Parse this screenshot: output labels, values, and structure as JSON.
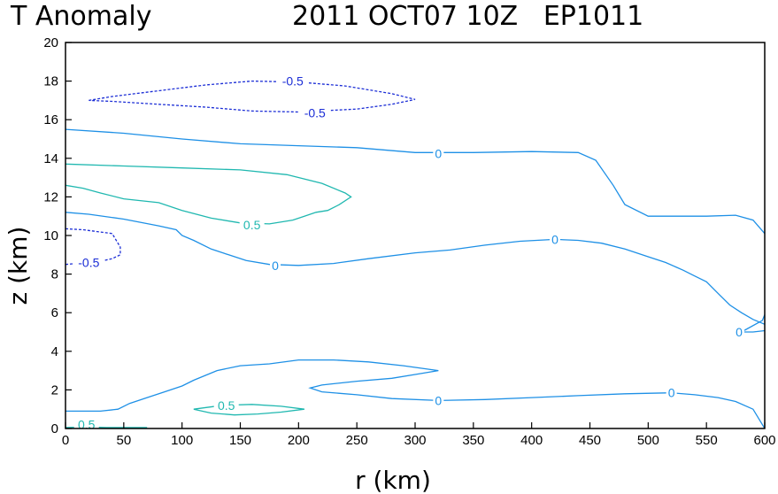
{
  "chart_data": {
    "type": "contour",
    "title_left": "T Anomaly",
    "title_right": "2011 OCT07 10Z   EP1011",
    "xlabel": "r (km)",
    "ylabel": "z (km)",
    "xlim": [
      0,
      600
    ],
    "ylim": [
      0,
      20
    ],
    "xticks": [
      0,
      50,
      100,
      150,
      200,
      250,
      300,
      350,
      400,
      450,
      500,
      550,
      600
    ],
    "yticks": [
      0,
      2,
      4,
      6,
      8,
      10,
      12,
      14,
      16,
      18,
      20
    ],
    "colors": {
      "zero": "#1e90e6",
      "positive": "#20b8b0",
      "negative": "#1c2ed6"
    },
    "contours": [
      {
        "level": 0,
        "style": "solid",
        "color": "zero",
        "points": [
          [
            0,
            15.5
          ],
          [
            50,
            15.3
          ],
          [
            100,
            15.0
          ],
          [
            150,
            14.75
          ],
          [
            200,
            14.65
          ],
          [
            250,
            14.55
          ],
          [
            300,
            14.3
          ],
          [
            350,
            14.3
          ],
          [
            400,
            14.35
          ],
          [
            440,
            14.3
          ],
          [
            455,
            13.9
          ],
          [
            470,
            12.6
          ],
          [
            480,
            11.6
          ],
          [
            500,
            11.0
          ],
          [
            525,
            11.0
          ],
          [
            550,
            11.0
          ],
          [
            575,
            11.05
          ],
          [
            590,
            10.8
          ],
          [
            600,
            10.1
          ]
        ],
        "labels": [
          {
            "text": "0",
            "x": 320,
            "y": 14.25
          }
        ]
      },
      {
        "level": 0,
        "style": "solid",
        "color": "zero",
        "points": [
          [
            0,
            11.2
          ],
          [
            20,
            11.1
          ],
          [
            50,
            10.85
          ],
          [
            80,
            10.5
          ],
          [
            95,
            10.3
          ],
          [
            100,
            10.0
          ],
          [
            110,
            9.75
          ],
          [
            125,
            9.3
          ],
          [
            140,
            9.0
          ],
          [
            155,
            8.7
          ],
          [
            175,
            8.5
          ],
          [
            200,
            8.45
          ],
          [
            230,
            8.55
          ],
          [
            260,
            8.8
          ],
          [
            300,
            9.1
          ],
          [
            330,
            9.25
          ],
          [
            360,
            9.5
          ],
          [
            390,
            9.7
          ],
          [
            420,
            9.8
          ],
          [
            440,
            9.75
          ],
          [
            460,
            9.6
          ],
          [
            480,
            9.3
          ],
          [
            500,
            8.9
          ],
          [
            515,
            8.6
          ],
          [
            530,
            8.2
          ],
          [
            540,
            7.9
          ],
          [
            550,
            7.6
          ],
          [
            560,
            7.0
          ],
          [
            570,
            6.4
          ],
          [
            580,
            6.0
          ],
          [
            590,
            5.65
          ],
          [
            600,
            5.4
          ],
          [
            605,
            5.1
          ],
          [
            590,
            5.0
          ],
          [
            580,
            5.0
          ],
          [
            598,
            5.6
          ],
          [
            600,
            5.9
          ]
        ],
        "labels": [
          {
            "text": "0",
            "x": 180,
            "y": 8.45
          },
          {
            "text": "0",
            "x": 420,
            "y": 9.8
          },
          {
            "text": "0",
            "x": 578,
            "y": 5.0
          }
        ]
      },
      {
        "level": 0,
        "style": "solid",
        "color": "zero",
        "points": [
          [
            0,
            0.9
          ],
          [
            30,
            0.9
          ],
          [
            45,
            1.0
          ],
          [
            55,
            1.3
          ],
          [
            70,
            1.6
          ],
          [
            85,
            1.9
          ],
          [
            100,
            2.2
          ],
          [
            110,
            2.5
          ],
          [
            130,
            3.0
          ],
          [
            150,
            3.25
          ],
          [
            175,
            3.35
          ],
          [
            200,
            3.55
          ],
          [
            230,
            3.55
          ],
          [
            260,
            3.45
          ],
          [
            290,
            3.25
          ],
          [
            320,
            3.0
          ],
          [
            300,
            2.8
          ],
          [
            280,
            2.6
          ],
          [
            250,
            2.45
          ],
          [
            220,
            2.25
          ],
          [
            210,
            2.1
          ],
          [
            220,
            1.9
          ],
          [
            250,
            1.75
          ],
          [
            280,
            1.55
          ],
          [
            320,
            1.45
          ],
          [
            360,
            1.5
          ],
          [
            400,
            1.6
          ],
          [
            440,
            1.7
          ],
          [
            480,
            1.8
          ],
          [
            520,
            1.85
          ],
          [
            540,
            1.75
          ],
          [
            560,
            1.6
          ],
          [
            575,
            1.4
          ],
          [
            590,
            1.0
          ],
          [
            600,
            0.0
          ]
        ],
        "labels": [
          {
            "text": "0",
            "x": 320,
            "y": 1.45
          },
          {
            "text": "0",
            "x": 520,
            "y": 1.85
          }
        ]
      },
      {
        "level": 0.5,
        "style": "solid",
        "color": "positive",
        "points": [
          [
            0,
            13.7
          ],
          [
            50,
            13.6
          ],
          [
            100,
            13.5
          ],
          [
            150,
            13.4
          ],
          [
            190,
            13.15
          ],
          [
            220,
            12.7
          ],
          [
            240,
            12.2
          ],
          [
            245,
            12.0
          ],
          [
            235,
            11.6
          ],
          [
            225,
            11.3
          ],
          [
            215,
            11.2
          ],
          [
            205,
            11.0
          ],
          [
            195,
            10.8
          ],
          [
            175,
            10.6
          ],
          [
            150,
            10.65
          ],
          [
            125,
            10.9
          ],
          [
            100,
            11.3
          ],
          [
            80,
            11.7
          ],
          [
            50,
            11.9
          ],
          [
            30,
            12.2
          ],
          [
            15,
            12.45
          ],
          [
            0,
            12.6
          ]
        ],
        "labels": [
          {
            "text": "0.5",
            "x": 160,
            "y": 10.55
          }
        ]
      },
      {
        "level": 0.5,
        "style": "solid",
        "color": "positive",
        "points": [
          [
            110,
            1.0
          ],
          [
            125,
            0.8
          ],
          [
            145,
            0.7
          ],
          [
            165,
            0.75
          ],
          [
            185,
            0.85
          ],
          [
            205,
            1.0
          ],
          [
            185,
            1.15
          ],
          [
            160,
            1.25
          ],
          [
            135,
            1.2
          ],
          [
            110,
            1.0
          ]
        ],
        "labels": [
          {
            "text": "0.5",
            "x": 138,
            "y": 1.2
          }
        ]
      },
      {
        "level": 0.5,
        "style": "solid",
        "color": "positive",
        "points": [
          [
            0,
            0.05
          ],
          [
            20,
            0.08
          ],
          [
            35,
            0.05
          ],
          [
            55,
            0.05
          ],
          [
            70,
            0.05
          ]
        ],
        "labels": [
          {
            "text": "0.5",
            "x": 18,
            "y": 0.2
          }
        ]
      },
      {
        "level": -0.5,
        "style": "dashed",
        "color": "negative",
        "points": [
          [
            20,
            17.0
          ],
          [
            40,
            17.2
          ],
          [
            80,
            17.5
          ],
          [
            120,
            17.8
          ],
          [
            160,
            18.0
          ],
          [
            200,
            17.95
          ],
          [
            240,
            17.75
          ],
          [
            280,
            17.35
          ],
          [
            300,
            17.05
          ],
          [
            280,
            16.8
          ],
          [
            250,
            16.55
          ],
          [
            200,
            16.4
          ],
          [
            160,
            16.45
          ],
          [
            120,
            16.65
          ],
          [
            80,
            16.8
          ],
          [
            40,
            16.95
          ],
          [
            20,
            17.0
          ]
        ],
        "labels": [
          {
            "text": "-0.5",
            "x": 195,
            "y": 18.0
          },
          {
            "text": "-0.5",
            "x": 214,
            "y": 16.35
          }
        ]
      },
      {
        "level": -0.5,
        "style": "dashed",
        "color": "negative",
        "points": [
          [
            0,
            10.35
          ],
          [
            15,
            10.3
          ],
          [
            40,
            10.1
          ],
          [
            47,
            9.4
          ],
          [
            47,
            9.0
          ],
          [
            40,
            8.8
          ],
          [
            25,
            8.6
          ],
          [
            10,
            8.55
          ],
          [
            0,
            8.5
          ]
        ],
        "labels": [
          {
            "text": "-0.5",
            "x": 20,
            "y": 8.6
          }
        ]
      }
    ]
  }
}
